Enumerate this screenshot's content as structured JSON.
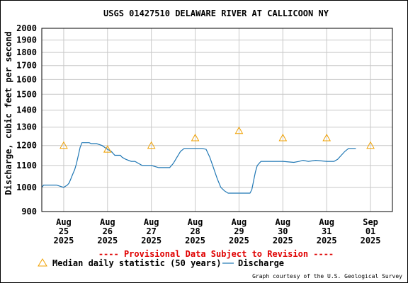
{
  "chart_data": {
    "type": "line",
    "title": "USGS 01427510 DELAWARE RIVER AT CALLICOON NY",
    "ylabel": "Discharge, cubic feet per second",
    "xlabel": "",
    "yscale": "log",
    "ylim": [
      900,
      2000
    ],
    "yticks": [
      900,
      1000,
      1100,
      1200,
      1300,
      1400,
      1500,
      1600,
      1700,
      1800,
      1900,
      2000
    ],
    "ytick_labels": [
      "900",
      "1000",
      "1100",
      "1200",
      "1300",
      "1400",
      "1500",
      "1600",
      "1700",
      "1800",
      "1900",
      "2000"
    ],
    "xlim": [
      "2025-08-24T12:00",
      "2025-09-01T12:00"
    ],
    "xticks": [
      {
        "at": "2025-08-25",
        "month": "Aug",
        "day": "25",
        "year": "2025"
      },
      {
        "at": "2025-08-26",
        "month": "Aug",
        "day": "26",
        "year": "2025"
      },
      {
        "at": "2025-08-27",
        "month": "Aug",
        "day": "27",
        "year": "2025"
      },
      {
        "at": "2025-08-28",
        "month": "Aug",
        "day": "28",
        "year": "2025"
      },
      {
        "at": "2025-08-29",
        "month": "Aug",
        "day": "29",
        "year": "2025"
      },
      {
        "at": "2025-08-30",
        "month": "Aug",
        "day": "30",
        "year": "2025"
      },
      {
        "at": "2025-08-31",
        "month": "Aug",
        "day": "31",
        "year": "2025"
      },
      {
        "at": "2025-09-01",
        "month": "Sep",
        "day": "01",
        "year": "2025"
      }
    ],
    "grid": true,
    "series": [
      {
        "name": "Discharge",
        "color": "#1f77b4",
        "style": "line",
        "points": [
          [
            "2025-08-24T12:00",
            1000
          ],
          [
            "2025-08-24T13:00",
            1010
          ],
          [
            "2025-08-24T20:00",
            1010
          ],
          [
            "2025-08-25T00:00",
            1000
          ],
          [
            "2025-08-25T02:00",
            1010
          ],
          [
            "2025-08-25T03:00",
            1020
          ],
          [
            "2025-08-25T04:00",
            1040
          ],
          [
            "2025-08-25T05:00",
            1060
          ],
          [
            "2025-08-25T06:00",
            1080
          ],
          [
            "2025-08-25T07:00",
            1110
          ],
          [
            "2025-08-25T08:00",
            1150
          ],
          [
            "2025-08-25T09:00",
            1190
          ],
          [
            "2025-08-25T10:00",
            1215
          ],
          [
            "2025-08-25T14:00",
            1215
          ],
          [
            "2025-08-25T15:00",
            1210
          ],
          [
            "2025-08-25T18:00",
            1210
          ],
          [
            "2025-08-25T21:00",
            1200
          ],
          [
            "2025-08-26T00:00",
            1180
          ],
          [
            "2025-08-26T02:00",
            1170
          ],
          [
            "2025-08-26T04:00",
            1150
          ],
          [
            "2025-08-26T07:00",
            1150
          ],
          [
            "2025-08-26T08:00",
            1140
          ],
          [
            "2025-08-26T10:00",
            1130
          ],
          [
            "2025-08-26T13:00",
            1120
          ],
          [
            "2025-08-26T15:00",
            1120
          ],
          [
            "2025-08-26T17:00",
            1110
          ],
          [
            "2025-08-26T19:00",
            1100
          ],
          [
            "2025-08-27T00:00",
            1100
          ],
          [
            "2025-08-27T04:00",
            1090
          ],
          [
            "2025-08-27T10:00",
            1090
          ],
          [
            "2025-08-27T12:00",
            1110
          ],
          [
            "2025-08-27T14:00",
            1140
          ],
          [
            "2025-08-27T16:00",
            1170
          ],
          [
            "2025-08-27T18:00",
            1185
          ],
          [
            "2025-08-28T00:00",
            1185
          ],
          [
            "2025-08-28T04:00",
            1185
          ],
          [
            "2025-08-28T06:00",
            1180
          ],
          [
            "2025-08-28T08:00",
            1140
          ],
          [
            "2025-08-28T10:00",
            1090
          ],
          [
            "2025-08-28T12:00",
            1040
          ],
          [
            "2025-08-28T14:00",
            1000
          ],
          [
            "2025-08-28T16:00",
            985
          ],
          [
            "2025-08-28T18:00",
            975
          ],
          [
            "2025-08-29T06:00",
            975
          ],
          [
            "2025-08-29T07:00",
            990
          ],
          [
            "2025-08-29T08:00",
            1030
          ],
          [
            "2025-08-29T09:00",
            1070
          ],
          [
            "2025-08-29T10:00",
            1100
          ],
          [
            "2025-08-29T12:00",
            1120
          ],
          [
            "2025-08-30T00:00",
            1120
          ],
          [
            "2025-08-30T06:00",
            1115
          ],
          [
            "2025-08-30T09:00",
            1120
          ],
          [
            "2025-08-30T11:00",
            1125
          ],
          [
            "2025-08-30T14:00",
            1120
          ],
          [
            "2025-08-30T18:00",
            1125
          ],
          [
            "2025-08-31T00:00",
            1120
          ],
          [
            "2025-08-31T04:00",
            1120
          ],
          [
            "2025-08-31T06:00",
            1130
          ],
          [
            "2025-08-31T08:00",
            1150
          ],
          [
            "2025-08-31T10:00",
            1170
          ],
          [
            "2025-08-31T12:00",
            1185
          ],
          [
            "2025-08-31T16:00",
            1185
          ]
        ]
      },
      {
        "name": "Median daily statistic (50 years)",
        "color": "#f0a000",
        "style": "triangle",
        "points": [
          [
            "2025-08-25T00:00",
            1200
          ],
          [
            "2025-08-26T00:00",
            1180
          ],
          [
            "2025-08-27T00:00",
            1200
          ],
          [
            "2025-08-28T00:00",
            1240
          ],
          [
            "2025-08-29T00:00",
            1280
          ],
          [
            "2025-08-30T00:00",
            1240
          ],
          [
            "2025-08-31T00:00",
            1240
          ],
          [
            "2025-09-01T00:00",
            1200
          ]
        ]
      }
    ],
    "legend": {
      "placement": "bottom",
      "median_label": "Median daily statistic (50 years)",
      "discharge_label": "Discharge"
    },
    "annotations": {
      "provisional": "---- Provisional Data Subject to Revision ----",
      "provisional_color": "#e00000",
      "credit": "Graph courtesy of the U.S. Geological Survey"
    }
  }
}
